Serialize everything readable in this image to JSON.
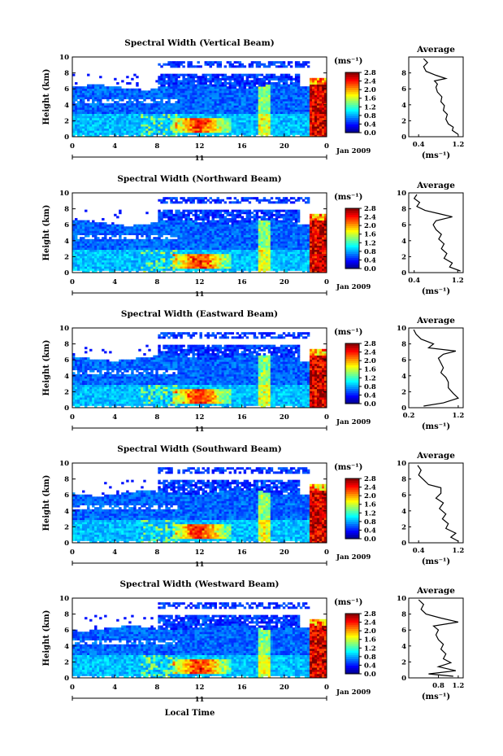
{
  "figure": {
    "xlabel": "Local Time",
    "date_label": "Jan 2009",
    "day_label": "11"
  },
  "chart_data": [
    {
      "type": "heatmap",
      "title": "Spectral Width (Vertical Beam)",
      "ylabel": "Height (km)",
      "xlabel": "Local Time",
      "x_ticks": [
        "0",
        "4",
        "8",
        "12",
        "16",
        "20",
        "0"
      ],
      "y_ticks": [
        "0",
        "2",
        "4",
        "6",
        "8",
        "10"
      ],
      "xlim": [
        0,
        24
      ],
      "ylim": [
        0,
        10
      ],
      "colorbar": {
        "unit": "(ms⁻¹)",
        "ticks": [
          "0.0",
          "0.4",
          "0.8",
          "1.2",
          "1.6",
          "2.0",
          "2.4",
          "2.8"
        ],
        "range": [
          0,
          2.8
        ]
      },
      "profile": {
        "title": "Average",
        "xlabel": "(ms⁻¹)",
        "x_ticks": [
          "0.4",
          "1.2"
        ],
        "y_ticks": [
          "0",
          "2",
          "4",
          "6",
          "8"
        ],
        "xlim": [
          0.2,
          1.3
        ],
        "ylim": [
          0,
          10
        ],
        "points": [
          [
            1.2,
            0.3
          ],
          [
            1.08,
            0.8
          ],
          [
            1.1,
            1.2
          ],
          [
            1.0,
            1.6
          ],
          [
            0.95,
            2.2
          ],
          [
            0.98,
            2.8
          ],
          [
            0.9,
            3.3
          ],
          [
            0.92,
            3.9
          ],
          [
            0.85,
            4.4
          ],
          [
            0.87,
            5.0
          ],
          [
            0.78,
            5.6
          ],
          [
            0.75,
            6.2
          ],
          [
            0.78,
            6.6
          ],
          [
            0.72,
            7.0
          ],
          [
            0.95,
            7.3
          ],
          [
            0.75,
            7.7
          ],
          [
            0.55,
            8.2
          ],
          [
            0.5,
            8.8
          ],
          [
            0.58,
            9.3
          ],
          [
            0.5,
            9.8
          ]
        ]
      }
    },
    {
      "type": "heatmap",
      "title": "Spectral Width (Northward Beam)",
      "ylabel": "Height (km)",
      "xlabel": "Local Time",
      "x_ticks": [
        "0",
        "4",
        "8",
        "12",
        "16",
        "20",
        "0"
      ],
      "y_ticks": [
        "0",
        "2",
        "4",
        "6",
        "8",
        "10"
      ],
      "xlim": [
        0,
        24
      ],
      "ylim": [
        0,
        10
      ],
      "colorbar": {
        "unit": "(ms⁻¹)",
        "ticks": [
          "0.0",
          "0.4",
          "0.8",
          "1.2",
          "1.6",
          "2.0",
          "2.4",
          "2.8"
        ],
        "range": [
          0,
          2.8
        ]
      },
      "profile": {
        "title": "Average",
        "xlabel": "(ms⁻¹)",
        "x_ticks": [
          "0.4",
          "1.2"
        ],
        "y_ticks": [
          "0",
          "2",
          "4",
          "6",
          "8",
          "10"
        ],
        "xlim": [
          0.3,
          1.3
        ],
        "ylim": [
          0,
          10
        ],
        "points": [
          [
            1.25,
            0.2
          ],
          [
            1.05,
            0.7
          ],
          [
            1.1,
            1.2
          ],
          [
            0.95,
            1.8
          ],
          [
            1.0,
            2.4
          ],
          [
            0.9,
            3.0
          ],
          [
            0.95,
            3.6
          ],
          [
            0.85,
            4.2
          ],
          [
            0.9,
            4.8
          ],
          [
            0.8,
            5.4
          ],
          [
            0.75,
            6.0
          ],
          [
            0.8,
            6.5
          ],
          [
            1.1,
            7.0
          ],
          [
            0.85,
            7.4
          ],
          [
            0.6,
            7.8
          ],
          [
            0.45,
            8.3
          ],
          [
            0.5,
            8.8
          ],
          [
            0.4,
            9.3
          ],
          [
            0.45,
            9.8
          ]
        ]
      }
    },
    {
      "type": "heatmap",
      "title": "Spectral Width (Eastward Beam)",
      "ylabel": "Height (km)",
      "xlabel": "Local Time",
      "x_ticks": [
        "0",
        "4",
        "8",
        "12",
        "16",
        "20",
        "0"
      ],
      "y_ticks": [
        "0",
        "2",
        "4",
        "6",
        "8",
        "10"
      ],
      "xlim": [
        0,
        24
      ],
      "ylim": [
        0,
        10
      ],
      "colorbar": {
        "unit": "(ms⁻¹)",
        "ticks": [
          "0.0",
          "0.4",
          "0.8",
          "1.2",
          "1.6",
          "2.0",
          "2.4",
          "2.8"
        ],
        "range": [
          0,
          2.8
        ]
      },
      "profile": {
        "title": "Average",
        "xlabel": "(ms⁻¹)",
        "x_ticks": [
          "0.2",
          "1.2"
        ],
        "y_ticks": [
          "0",
          "2",
          "4",
          "6",
          "8",
          "10"
        ],
        "xlim": [
          0.2,
          1.3
        ],
        "ylim": [
          0,
          10
        ],
        "points": [
          [
            0.5,
            0.2
          ],
          [
            0.9,
            0.6
          ],
          [
            1.2,
            1.2
          ],
          [
            1.1,
            1.8
          ],
          [
            1.0,
            2.5
          ],
          [
            1.0,
            3.2
          ],
          [
            0.95,
            3.8
          ],
          [
            0.85,
            4.4
          ],
          [
            0.9,
            5.0
          ],
          [
            0.85,
            5.6
          ],
          [
            0.8,
            6.2
          ],
          [
            0.9,
            6.7
          ],
          [
            1.15,
            7.1
          ],
          [
            0.6,
            7.5
          ],
          [
            0.7,
            8.0
          ],
          [
            0.45,
            8.6
          ],
          [
            0.35,
            9.2
          ],
          [
            0.3,
            9.8
          ]
        ]
      }
    },
    {
      "type": "heatmap",
      "title": "Spectral Width (Southward Beam)",
      "ylabel": "Height (km)",
      "xlabel": "Local Time",
      "x_ticks": [
        "0",
        "4",
        "8",
        "12",
        "16",
        "20",
        "0"
      ],
      "y_ticks": [
        "0",
        "2",
        "4",
        "6",
        "8",
        "10"
      ],
      "xlim": [
        0,
        24
      ],
      "ylim": [
        0,
        10
      ],
      "colorbar": {
        "unit": "(ms⁻¹)",
        "ticks": [
          "0.0",
          "0.4",
          "0.8",
          "1.2",
          "1.6",
          "2.0",
          "2.4",
          "2.8"
        ],
        "range": [
          0,
          2.8
        ]
      },
      "profile": {
        "title": "Average",
        "xlabel": "(ms⁻¹)",
        "x_ticks": [
          "0.4",
          "1.2"
        ],
        "y_ticks": [
          "0",
          "2",
          "4",
          "6",
          "8",
          "10"
        ],
        "xlim": [
          0.2,
          1.3
        ],
        "ylim": [
          0,
          10
        ],
        "points": [
          [
            1.2,
            0.2
          ],
          [
            1.05,
            0.7
          ],
          [
            1.15,
            1.2
          ],
          [
            0.95,
            1.8
          ],
          [
            1.0,
            2.4
          ],
          [
            0.88,
            3.0
          ],
          [
            0.95,
            3.6
          ],
          [
            0.82,
            4.3
          ],
          [
            0.9,
            5.0
          ],
          [
            0.75,
            5.6
          ],
          [
            0.85,
            6.2
          ],
          [
            0.85,
            6.9
          ],
          [
            0.6,
            7.3
          ],
          [
            0.5,
            7.9
          ],
          [
            0.4,
            8.5
          ],
          [
            0.45,
            9.1
          ],
          [
            0.38,
            9.7
          ]
        ]
      }
    },
    {
      "type": "heatmap",
      "title": "Spectral Width (Westward Beam)",
      "ylabel": "Height (km)",
      "xlabel": "Local Time",
      "x_ticks": [
        "0",
        "4",
        "8",
        "12",
        "16",
        "20",
        "0"
      ],
      "y_ticks": [
        "0",
        "2",
        "4",
        "6",
        "8",
        "10"
      ],
      "xlim": [
        0,
        24
      ],
      "ylim": [
        0,
        10
      ],
      "colorbar": {
        "unit": "(ms⁻¹)",
        "ticks": [
          "0.0",
          "0.4",
          "0.8",
          "1.2",
          "1.6",
          "2.0",
          "2.4",
          "2.8"
        ],
        "range": [
          0,
          2.8
        ]
      },
      "profile": {
        "title": "Average",
        "xlabel": "(ms⁻¹)",
        "x_ticks": [
          "0.8",
          "1.2"
        ],
        "y_ticks": [
          "0",
          "2",
          "4",
          "6",
          "8",
          "10"
        ],
        "xlim": [
          0.2,
          1.3
        ],
        "ylim": [
          0,
          10
        ],
        "points": [
          [
            1.1,
            0.2
          ],
          [
            0.6,
            0.5
          ],
          [
            1.15,
            0.9
          ],
          [
            0.8,
            1.4
          ],
          [
            1.05,
            1.9
          ],
          [
            0.9,
            2.4
          ],
          [
            0.95,
            3.0
          ],
          [
            0.85,
            3.6
          ],
          [
            0.9,
            4.2
          ],
          [
            0.8,
            4.8
          ],
          [
            0.75,
            5.4
          ],
          [
            0.8,
            6.0
          ],
          [
            0.7,
            6.5
          ],
          [
            1.2,
            7.0
          ],
          [
            0.85,
            7.5
          ],
          [
            0.55,
            8.0
          ],
          [
            0.45,
            8.6
          ],
          [
            0.5,
            9.2
          ],
          [
            0.4,
            9.8
          ]
        ]
      }
    }
  ]
}
